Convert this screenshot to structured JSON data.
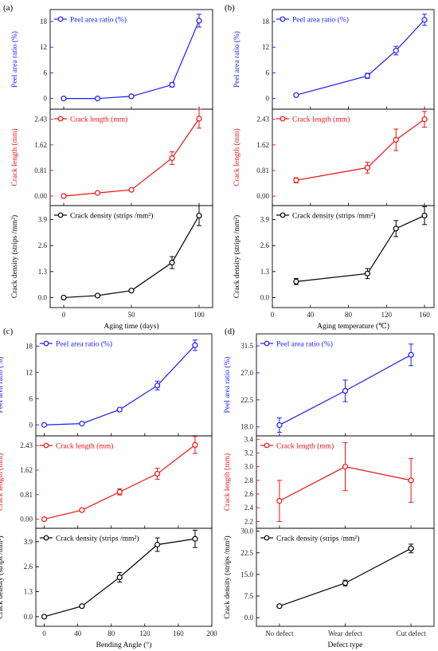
{
  "chart_data": [
    {
      "panel_label": "(a)",
      "type": "line",
      "xlabel": "Aging time (days)",
      "x": [
        0,
        25,
        50,
        80,
        100
      ],
      "xlim": [
        -10,
        110
      ],
      "xticks": [
        0,
        50,
        100
      ],
      "xtick_labels": [
        "0",
        "50",
        "100"
      ],
      "subplots": [
        {
          "key": "peel",
          "legend": "Peel area ratio (%)",
          "ylabel": "Peel area ratio (%)",
          "color": "#1a1aff",
          "ylim": [
            -2.5,
            20.8
          ],
          "yticks": [
            0,
            6,
            12,
            18
          ],
          "ytick_labels": [
            "0",
            "6",
            "12",
            "18"
          ],
          "values": [
            0,
            0,
            0.5,
            3.2,
            18.2
          ],
          "err": [
            0.1,
            0.1,
            0.2,
            0.5,
            1.5
          ]
        },
        {
          "key": "crack_len",
          "legend": "Crack length (mm)",
          "ylabel": "Crack length (mm)",
          "color": "#ee1111",
          "ylim": [
            -0.3,
            2.75
          ],
          "yticks": [
            0,
            0.81,
            1.62,
            2.43
          ],
          "ytick_labels": [
            "0.00",
            "0.81",
            "1.62",
            "2.43"
          ],
          "values": [
            0,
            0.1,
            0.2,
            1.2,
            2.45
          ],
          "err": [
            0.02,
            0.03,
            0.04,
            0.2,
            0.3
          ]
        },
        {
          "key": "crack_den",
          "legend": "Crack density (strips /mm²)",
          "ylabel": "Crack density (strips /mm²)",
          "color": "#000000",
          "ylim": [
            -0.5,
            4.6
          ],
          "yticks": [
            0,
            1.3,
            2.6,
            3.9
          ],
          "ytick_labels": [
            "0.0",
            "1.3",
            "2.6",
            "3.9"
          ],
          "values": [
            0,
            0.1,
            0.35,
            1.75,
            4.1
          ],
          "err": [
            0.03,
            0.04,
            0.05,
            0.3,
            0.5
          ]
        }
      ]
    },
    {
      "panel_label": "(b)",
      "type": "line",
      "xlabel": "Aging temperature (℃)",
      "x": [
        25,
        100,
        130,
        160
      ],
      "xlim": [
        0,
        170
      ],
      "xticks": [
        0,
        40,
        80,
        120,
        160
      ],
      "xtick_labels": [
        "0",
        "40",
        "80",
        "120",
        "160"
      ],
      "subplots": [
        {
          "key": "peel",
          "legend": "Peel area ratio (%)",
          "ylabel": "Peel area ratio (%)",
          "color": "#1a1aff",
          "ylim": [
            -2.5,
            20.8
          ],
          "yticks": [
            0,
            6,
            12,
            18
          ],
          "ytick_labels": [
            "0",
            "6",
            "12",
            "18"
          ],
          "values": [
            0.8,
            5.3,
            11.2,
            18.4
          ],
          "err": [
            0.1,
            0.6,
            1.0,
            1.3
          ]
        },
        {
          "key": "crack_len",
          "legend": "Crack length (mm)",
          "ylabel": "Crack length (mm)",
          "color": "#ee1111",
          "ylim": [
            -0.3,
            2.75
          ],
          "yticks": [
            0,
            0.81,
            1.62,
            2.43
          ],
          "ytick_labels": [
            "0.00",
            "0.81",
            "1.62",
            "2.43"
          ],
          "values": [
            0.5,
            0.9,
            1.78,
            2.43
          ],
          "err": [
            0.08,
            0.17,
            0.34,
            0.25
          ]
        },
        {
          "key": "crack_den",
          "legend": "Crack density (strips /mm²)",
          "ylabel": "Crack density (strips /mm²)",
          "color": "#000000",
          "ylim": [
            -0.5,
            4.6
          ],
          "yticks": [
            0,
            1.3,
            2.6,
            3.9
          ],
          "ytick_labels": [
            "0.0",
            "1.3",
            "2.6",
            "3.9"
          ],
          "values": [
            0.8,
            1.2,
            3.45,
            4.1
          ],
          "err": [
            0.15,
            0.25,
            0.4,
            0.45
          ]
        }
      ]
    },
    {
      "panel_label": "(c)",
      "type": "line",
      "xlabel": "Bending Angle (°)",
      "x": [
        0,
        45,
        90,
        135,
        180
      ],
      "xlim": [
        -10,
        200
      ],
      "xticks": [
        0,
        40,
        80,
        120,
        160,
        200
      ],
      "xtick_labels": [
        "0",
        "40",
        "80",
        "120",
        "160",
        "200"
      ],
      "subplots": [
        {
          "key": "peel",
          "legend": "Peel area ratio (%)",
          "ylabel": "Peel area ratio (%)",
          "color": "#1a1aff",
          "ylim": [
            -2.5,
            20.8
          ],
          "yticks": [
            0,
            6,
            12,
            18
          ],
          "ytick_labels": [
            "0",
            "6",
            "12",
            "18"
          ],
          "values": [
            0,
            0.3,
            3.5,
            9.0,
            18.2
          ],
          "err": [
            0.1,
            0.1,
            0.3,
            1.0,
            1.2
          ]
        },
        {
          "key": "crack_len",
          "legend": "Crack length (mm)",
          "ylabel": "Crack length (mm)",
          "color": "#ee1111",
          "ylim": [
            -0.3,
            2.75
          ],
          "yticks": [
            0,
            0.81,
            1.62,
            2.43
          ],
          "ytick_labels": [
            "0.00",
            "0.81",
            "1.62",
            "2.43"
          ],
          "values": [
            0,
            0.3,
            0.9,
            1.5,
            2.45
          ],
          "err": [
            0.02,
            0.03,
            0.1,
            0.18,
            0.28
          ]
        },
        {
          "key": "crack_den",
          "legend": "Crack density (strips /mm²)",
          "ylabel": "Crack density (strips /mm²)",
          "color": "#000000",
          "ylim": [
            -0.5,
            4.6
          ],
          "yticks": [
            0,
            1.3,
            2.6,
            3.9
          ],
          "ytick_labels": [
            "0.0",
            "1.3",
            "2.6",
            "3.9"
          ],
          "values": [
            0,
            0.55,
            2.05,
            3.75,
            4.05
          ],
          "err": [
            0.03,
            0.06,
            0.25,
            0.35,
            0.45
          ]
        }
      ]
    },
    {
      "panel_label": "(d)",
      "type": "line",
      "xlabel": "Defect type",
      "x": [
        0,
        1,
        2
      ],
      "categories": [
        "No defect",
        "Wear defect",
        "Cut defect"
      ],
      "xlim": [
        -0.35,
        2.35
      ],
      "xticks": [
        0,
        1,
        2
      ],
      "xtick_labels": [
        "No defect",
        "Wear defect",
        "Cut defect"
      ],
      "subplots": [
        {
          "key": "peel",
          "legend": "Peel area ratio (%)",
          "ylabel": "Peel area ratio (%)",
          "color": "#1a1aff",
          "ylim": [
            16.5,
            33.5
          ],
          "yticks": [
            18.0,
            22.5,
            27.0,
            31.5
          ],
          "ytick_labels": [
            "18.0",
            "22.5",
            "27.0",
            "31.5"
          ],
          "values": [
            18.3,
            24.0,
            30.0
          ],
          "err": [
            1.2,
            1.8,
            1.8
          ]
        },
        {
          "key": "crack_len",
          "legend": "Crack length (mm)",
          "ylabel": "Crack length (mm)",
          "color": "#ee1111",
          "ylim": [
            2.1,
            3.45
          ],
          "yticks": [
            2.2,
            2.4,
            2.6,
            2.8,
            3.0,
            3.2,
            3.4
          ],
          "ytick_labels": [
            "2.2",
            "2.4",
            "2.6",
            "2.8",
            "3.0",
            "3.2",
            "3.4"
          ],
          "values": [
            2.5,
            3.0,
            2.8
          ],
          "err": [
            0.3,
            0.35,
            0.32
          ]
        },
        {
          "key": "crack_den",
          "legend": "Crack density (strips /mm²)",
          "ylabel": "Crack density (strips /mm²)",
          "color": "#000000",
          "ylim": [
            -3,
            31
          ],
          "yticks": [
            0,
            7.5,
            15,
            22.5,
            30
          ],
          "ytick_labels": [
            "0.0",
            "7.5",
            "15.0",
            "22.5",
            "30.0"
          ],
          "values": [
            4.0,
            12.0,
            24.0
          ],
          "err": [
            0.4,
            1.0,
            1.5
          ]
        }
      ]
    }
  ]
}
